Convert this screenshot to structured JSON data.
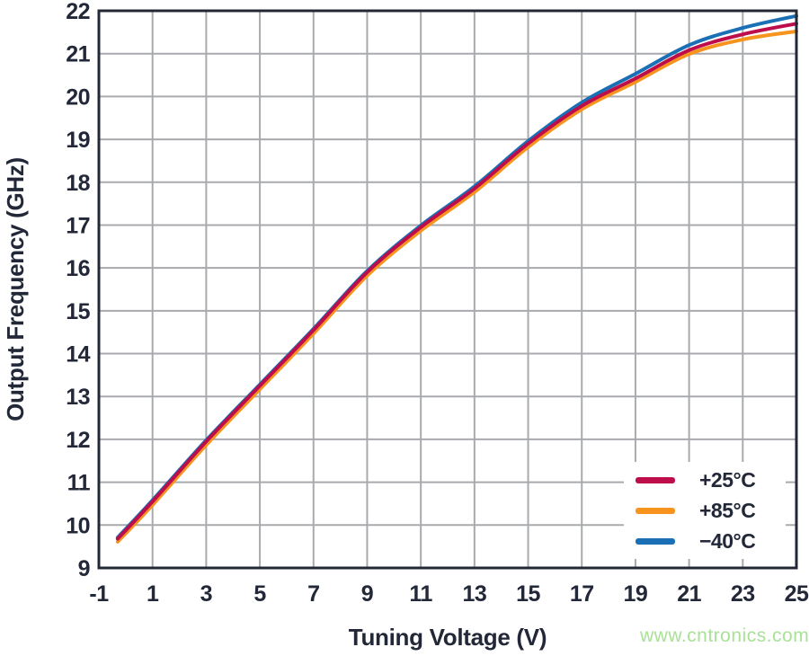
{
  "styles": {
    "background": "#FFFFFF",
    "text_color": "#222838",
    "grid_color": "#A8AAAD",
    "frame_color": "#232834"
  },
  "chart_data": {
    "type": "line",
    "title": "",
    "xlabel": "Tuning Voltage (V)",
    "ylabel": "Output Frequency (GHz)",
    "xlim": [
      -1,
      25
    ],
    "ylim": [
      9,
      22
    ],
    "x_ticks": [
      -1,
      1,
      3,
      5,
      7,
      9,
      11,
      13,
      15,
      17,
      19,
      21,
      23,
      25
    ],
    "y_ticks": [
      9,
      10,
      11,
      12,
      13,
      14,
      15,
      16,
      17,
      18,
      19,
      20,
      21,
      22
    ],
    "grid": true,
    "legend_position": "inside-lower-right",
    "draw_order": [
      2,
      1,
      0
    ],
    "series": [
      {
        "key": "plus25c",
        "name": "+25°C",
        "color": "#BE0D4B",
        "points": [
          [
            -0.3,
            9.68
          ],
          [
            1,
            10.55
          ],
          [
            3,
            11.95
          ],
          [
            5,
            13.25
          ],
          [
            7,
            14.55
          ],
          [
            9,
            15.9
          ],
          [
            11,
            16.95
          ],
          [
            13,
            17.85
          ],
          [
            15,
            18.9
          ],
          [
            17,
            19.78
          ],
          [
            19,
            20.42
          ],
          [
            21,
            21.08
          ],
          [
            23,
            21.45
          ],
          [
            25,
            21.7
          ]
        ]
      },
      {
        "key": "plus85c",
        "name": "+85°C",
        "color": "#F7941E",
        "points": [
          [
            -0.3,
            9.61
          ],
          [
            1,
            10.47
          ],
          [
            3,
            11.87
          ],
          [
            5,
            13.17
          ],
          [
            7,
            14.47
          ],
          [
            9,
            15.82
          ],
          [
            11,
            16.87
          ],
          [
            13,
            17.77
          ],
          [
            15,
            18.82
          ],
          [
            17,
            19.7
          ],
          [
            19,
            20.34
          ],
          [
            21,
            20.99
          ],
          [
            23,
            21.33
          ],
          [
            25,
            21.52
          ]
        ]
      },
      {
        "key": "minus40c",
        "name": "−40°C",
        "color": "#1B6FB5",
        "points": [
          [
            -0.3,
            9.71
          ],
          [
            1,
            10.58
          ],
          [
            3,
            11.98
          ],
          [
            5,
            13.28
          ],
          [
            7,
            14.58
          ],
          [
            9,
            15.93
          ],
          [
            11,
            16.99
          ],
          [
            13,
            17.9
          ],
          [
            15,
            18.96
          ],
          [
            17,
            19.86
          ],
          [
            19,
            20.53
          ],
          [
            21,
            21.2
          ],
          [
            23,
            21.6
          ],
          [
            25,
            21.88
          ]
        ]
      }
    ]
  },
  "watermark": {
    "text": "www.cntronics.com",
    "color": "#A9E197"
  }
}
